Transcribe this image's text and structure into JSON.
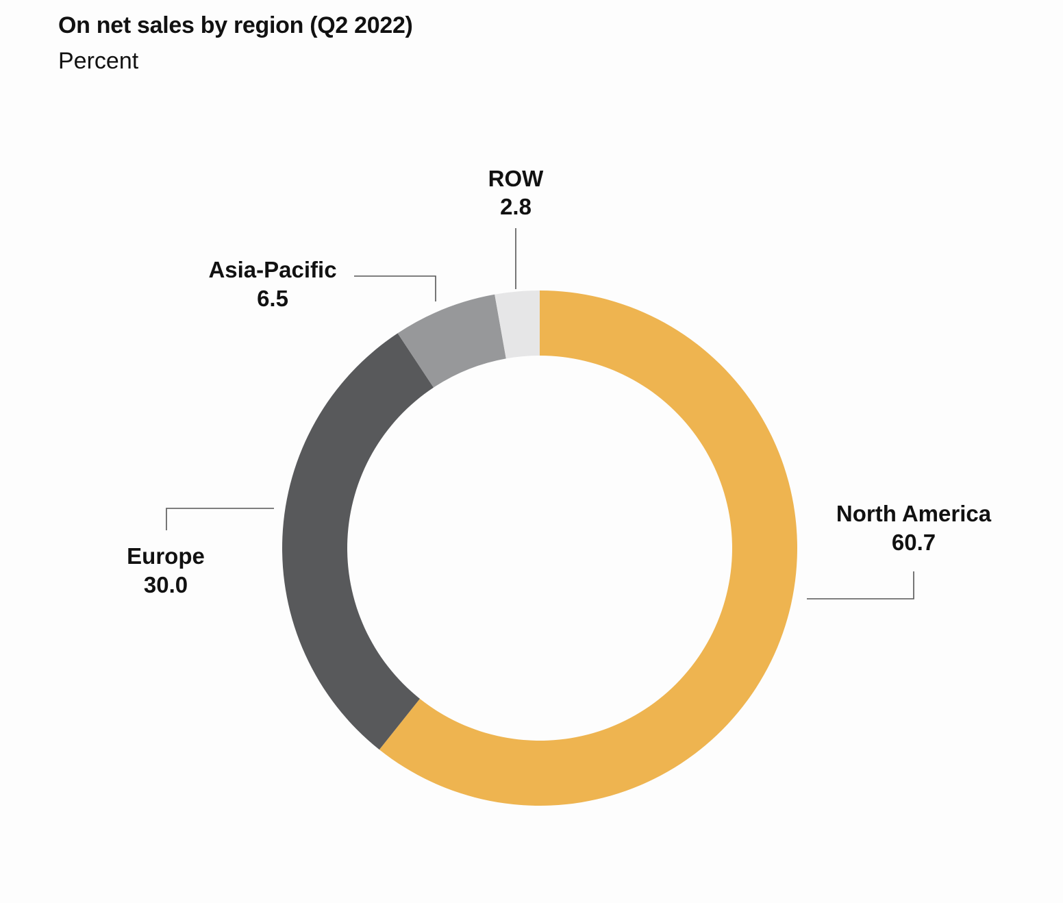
{
  "header": {
    "title": "On net sales by region (Q2 2022)",
    "subtitle": "Percent"
  },
  "chart_data": {
    "type": "pie",
    "title": "On net sales by region (Q2 2022)",
    "subtitle": "Percent",
    "donut": true,
    "start": "12 o'clock",
    "direction": "clockwise",
    "slices": [
      {
        "label": "North America",
        "value": 60.7,
        "value_label": "60.7",
        "color": "#EEB450"
      },
      {
        "label": "Europe",
        "value": 30.0,
        "value_label": "30.0",
        "color": "#58595B"
      },
      {
        "label": "Asia-Pacific",
        "value": 6.5,
        "value_label": "6.5",
        "color": "#97989A"
      },
      {
        "label": "ROW",
        "value": 2.8,
        "value_label": "2.8",
        "color": "#E6E6E7"
      }
    ]
  }
}
